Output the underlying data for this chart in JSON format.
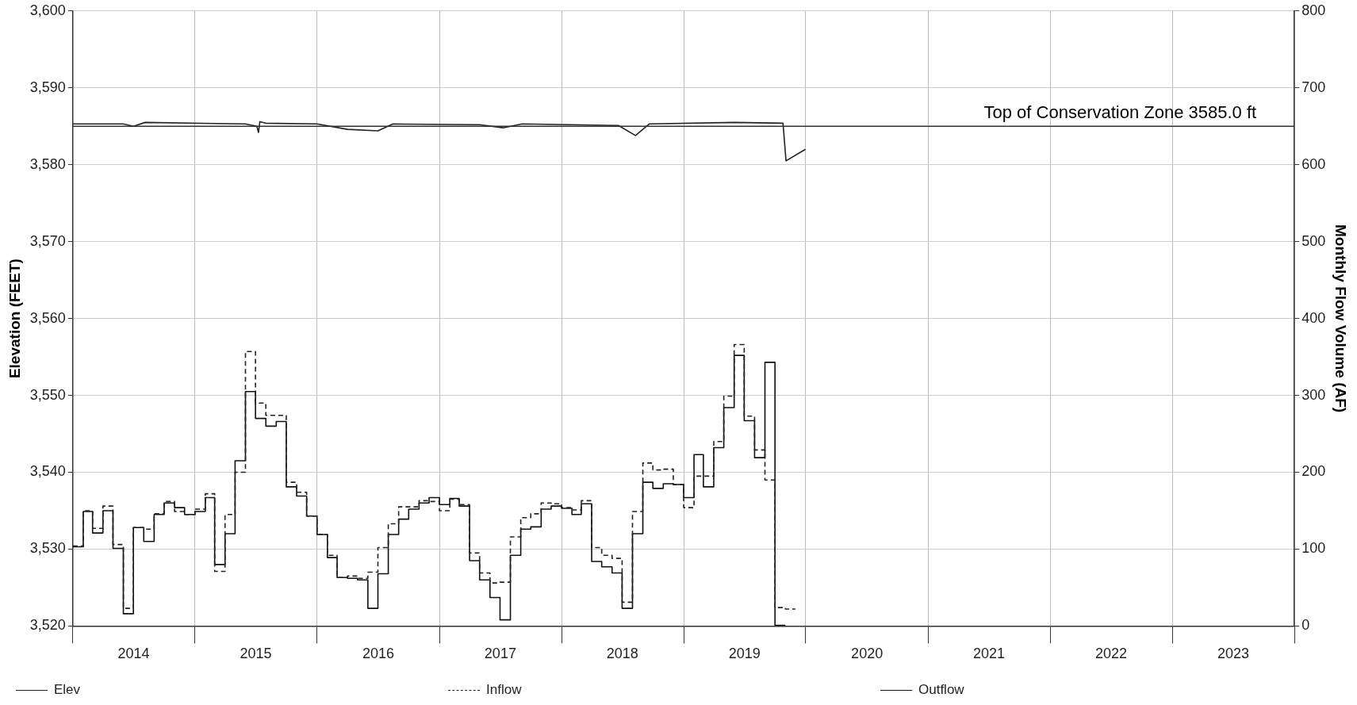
{
  "chart_data": {
    "type": "step",
    "ylabel": "Elevation (FEET)",
    "y2label": "Monthly Flow Volume (AF)",
    "x": [
      "2014-01",
      "2014-02",
      "2014-03",
      "2014-04",
      "2014-05",
      "2014-06",
      "2014-07",
      "2014-08",
      "2014-09",
      "2014-10",
      "2014-11",
      "2014-12",
      "2015-01",
      "2015-02",
      "2015-03",
      "2015-04",
      "2015-05",
      "2015-06",
      "2015-07",
      "2015-08",
      "2015-09",
      "2015-10",
      "2015-11",
      "2015-12",
      "2016-01",
      "2016-02",
      "2016-03",
      "2016-04",
      "2016-05",
      "2016-06",
      "2016-07",
      "2016-08",
      "2016-09",
      "2016-10",
      "2016-11",
      "2016-12",
      "2017-01",
      "2017-02",
      "2017-03",
      "2017-04",
      "2017-05",
      "2017-06",
      "2017-07",
      "2017-08",
      "2017-09",
      "2017-10",
      "2017-11",
      "2017-12",
      "2018-01",
      "2018-02",
      "2018-03",
      "2018-04",
      "2018-05",
      "2018-06",
      "2018-07",
      "2018-08",
      "2018-09",
      "2018-10",
      "2018-11",
      "2018-12",
      "2019-01",
      "2019-02",
      "2019-03",
      "2019-04",
      "2019-05",
      "2019-06",
      "2019-07",
      "2019-08",
      "2019-09",
      "2019-10",
      "2019-11",
      "2019-12"
    ],
    "series": [
      {
        "name": "Elev",
        "type": "line",
        "color": "#222222",
        "line_style": "solid",
        "x": [
          "2014-01-01",
          "2014-06-01",
          "2014-07-01",
          "2014-08-05",
          "2015-06-01",
          "2015-07-05",
          "2015-07-10",
          "2015-07-14",
          "2015-08-01",
          "2016-01-01",
          "2016-04-01",
          "2016-07-01",
          "2016-08-15",
          "2017-05-01",
          "2017-07-10",
          "2017-09-05",
          "2018-06-20",
          "2018-08-10",
          "2018-09-20",
          "2019-06-01",
          "2019-10-25",
          "2019-11-03",
          "2019-12-31"
        ],
        "values": [
          3585.3,
          3585.3,
          3585.0,
          3585.5,
          3585.3,
          3585.0,
          3584.2,
          3585.6,
          3585.4,
          3585.3,
          3584.6,
          3584.4,
          3585.3,
          3585.2,
          3584.8,
          3585.3,
          3585.1,
          3583.8,
          3585.3,
          3585.5,
          3585.4,
          3580.5,
          3582.0
        ]
      },
      {
        "name": "Inflow",
        "axis": "y2",
        "color": "#222222",
        "line_style": "dashed",
        "values": [
          104,
          104,
          150,
          127,
          156,
          106,
          23,
          128,
          126,
          146,
          162,
          149,
          145,
          152,
          172,
          71,
          145,
          200,
          357,
          290,
          274,
          274,
          187,
          174,
          143,
          119,
          92,
          63,
          65,
          62,
          70,
          102,
          133,
          155,
          155,
          163,
          162,
          150,
          165,
          158,
          95,
          69,
          56,
          57,
          116,
          141,
          146,
          160,
          159,
          154,
          151,
          163,
          102,
          92,
          88,
          31,
          149,
          212,
          203,
          204,
          184,
          154,
          195,
          195,
          240,
          299,
          366,
          273,
          229,
          190,
          24,
          22
        ]
      },
      {
        "name": "Outflow",
        "axis": "y2",
        "color": "#111111",
        "line_style": "solid",
        "values": [
          103,
          103,
          149,
          121,
          150,
          101,
          16,
          128,
          110,
          145,
          160,
          154,
          145,
          149,
          167,
          80,
          120,
          215,
          305,
          270,
          260,
          266,
          181,
          169,
          143,
          119,
          89,
          63,
          62,
          60,
          23,
          68,
          119,
          139,
          152,
          160,
          167,
          158,
          166,
          156,
          85,
          60,
          37,
          8,
          92,
          126,
          129,
          152,
          156,
          153,
          145,
          159,
          84,
          77,
          69,
          23,
          120,
          187,
          179,
          185,
          184,
          167,
          223,
          181,
          232,
          284,
          352,
          267,
          219,
          343,
          1,
          null
        ]
      }
    ],
    "xlim": [
      "2014-01-01",
      "2024-01-01"
    ],
    "xticks": [
      {
        "value": "2014-01-01",
        "label": null
      },
      {
        "value": "2014-07-02",
        "label": "2014"
      },
      {
        "value": "2015-01-01",
        "label": null
      },
      {
        "value": "2015-07-02",
        "label": "2015"
      },
      {
        "value": "2016-01-01",
        "label": null
      },
      {
        "value": "2016-07-02",
        "label": "2016"
      },
      {
        "value": "2017-01-01",
        "label": null
      },
      {
        "value": "2017-07-02",
        "label": "2017"
      },
      {
        "value": "2018-01-01",
        "label": null
      },
      {
        "value": "2018-07-02",
        "label": "2018"
      },
      {
        "value": "2019-01-01",
        "label": null
      },
      {
        "value": "2019-07-02",
        "label": "2019"
      },
      {
        "value": "2020-01-01",
        "label": null
      },
      {
        "value": "2020-07-02",
        "label": "2020"
      },
      {
        "value": "2021-01-01",
        "label": null
      },
      {
        "value": "2021-07-02",
        "label": "2021"
      },
      {
        "value": "2022-01-01",
        "label": null
      },
      {
        "value": "2022-07-02",
        "label": "2022"
      },
      {
        "value": "2023-01-01",
        "label": null
      },
      {
        "value": "2023-07-02",
        "label": "2023"
      },
      {
        "value": "2024-01-01",
        "label": null
      }
    ],
    "ylim": [
      3520,
      3600
    ],
    "yticks": [
      {
        "value": 3520,
        "label": "3,520"
      },
      {
        "value": 3530,
        "label": "3,530"
      },
      {
        "value": 3540,
        "label": "3,540"
      },
      {
        "value": 3550,
        "label": "3,550"
      },
      {
        "value": 3560,
        "label": "3,560"
      },
      {
        "value": 3570,
        "label": "3,570"
      },
      {
        "value": 3580,
        "label": "3,580"
      },
      {
        "value": 3590,
        "label": "3,590"
      },
      {
        "value": 3600,
        "label": "3,600"
      }
    ],
    "y2lim": [
      0,
      800
    ],
    "y2ticks": [
      0,
      100,
      200,
      300,
      400,
      500,
      600,
      700,
      800
    ],
    "ref_lines": [
      {
        "axis": "y",
        "value": 3585.0,
        "label": "Top of Conservation Zone 3585.0 ft",
        "color": "#333333"
      }
    ],
    "grid": true,
    "legend": "bottom",
    "marker": "none"
  }
}
